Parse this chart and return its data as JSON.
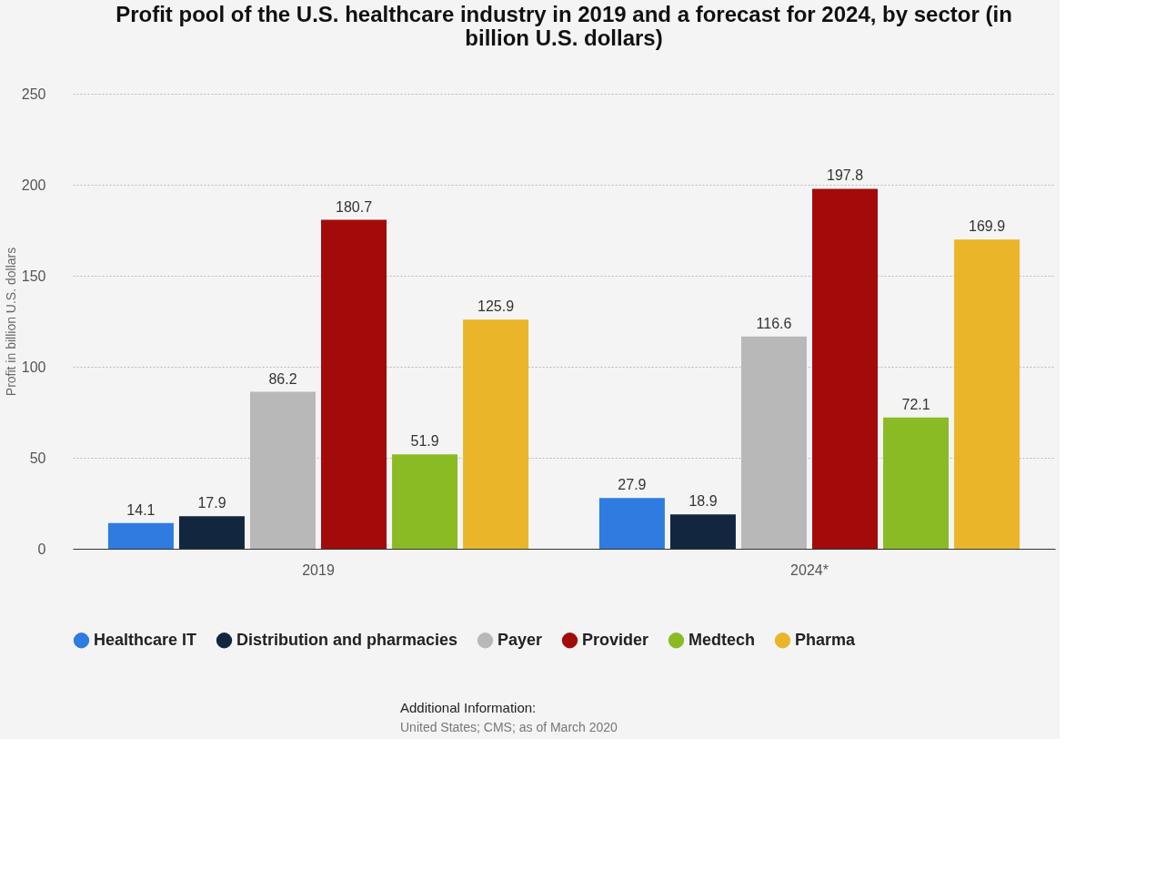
{
  "chart_data": {
    "type": "bar",
    "title": "Profit pool of the U.S. healthcare industry in 2019 and a forecast for 2024, by sector (in billion U.S. dollars)",
    "ylabel": "Profit in billion U.S. dollars",
    "categories": [
      "2019",
      "2024*"
    ],
    "series": [
      {
        "name": "Healthcare IT",
        "color": "#2f7be0",
        "values": [
          14.1,
          27.9
        ]
      },
      {
        "name": "Distribution and pharmacies",
        "color": "#12263f",
        "values": [
          17.9,
          18.9
        ]
      },
      {
        "name": "Payer",
        "color": "#b8b8b8",
        "values": [
          86.2,
          116.6
        ]
      },
      {
        "name": "Provider",
        "color": "#a30b0b",
        "values": [
          180.7,
          197.8
        ]
      },
      {
        "name": "Medtech",
        "color": "#8abb25",
        "values": [
          51.9,
          72.1
        ]
      },
      {
        "name": "Pharma",
        "color": "#ebb52a",
        "values": [
          125.9,
          169.9
        ]
      }
    ],
    "ylim": [
      0,
      250
    ],
    "yticks": [
      0,
      50,
      100,
      150,
      200,
      250
    ],
    "grid": "y",
    "legend": "bottom",
    "data_labels": true,
    "annotations": [
      "Additional Information:",
      "United States; CMS; as of March 2020"
    ]
  }
}
